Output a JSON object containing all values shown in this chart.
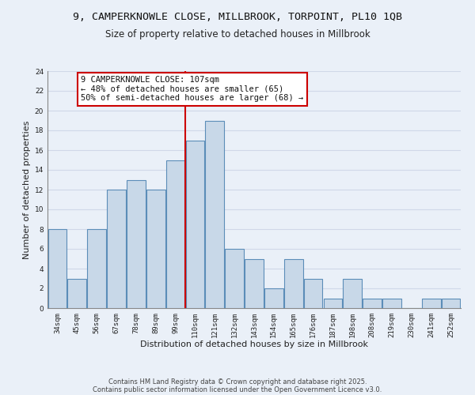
{
  "title1": "9, CAMPERKNOWLE CLOSE, MILLBROOK, TORPOINT, PL10 1QB",
  "title2": "Size of property relative to detached houses in Millbrook",
  "xlabel": "Distribution of detached houses by size in Millbrook",
  "ylabel": "Number of detached properties",
  "categories": [
    "34sqm",
    "45sqm",
    "56sqm",
    "67sqm",
    "78sqm",
    "89sqm",
    "99sqm",
    "110sqm",
    "121sqm",
    "132sqm",
    "143sqm",
    "154sqm",
    "165sqm",
    "176sqm",
    "187sqm",
    "198sqm",
    "208sqm",
    "219sqm",
    "230sqm",
    "241sqm",
    "252sqm"
  ],
  "values": [
    8,
    3,
    8,
    12,
    13,
    12,
    15,
    17,
    19,
    6,
    5,
    2,
    5,
    3,
    1,
    3,
    1,
    1,
    0,
    1,
    1
  ],
  "bar_color": "#c8d8e8",
  "bar_edge_color": "#5b8db8",
  "vline_color": "#cc0000",
  "annotation_text": "9 CAMPERKNOWLE CLOSE: 107sqm\n← 48% of detached houses are smaller (65)\n50% of semi-detached houses are larger (68) →",
  "annotation_box_color": "white",
  "annotation_box_edge_color": "#cc0000",
  "ylim": [
    0,
    24
  ],
  "yticks": [
    0,
    2,
    4,
    6,
    8,
    10,
    12,
    14,
    16,
    18,
    20,
    22,
    24
  ],
  "grid_color": "#d0d8e8",
  "bg_color": "#eaf0f8",
  "footer1": "Contains HM Land Registry data © Crown copyright and database right 2025.",
  "footer2": "Contains public sector information licensed under the Open Government Licence v3.0.",
  "title_fontsize": 9.5,
  "subtitle_fontsize": 8.5,
  "axis_label_fontsize": 8,
  "tick_fontsize": 6.5,
  "annotation_fontsize": 7.5,
  "footer_fontsize": 6
}
